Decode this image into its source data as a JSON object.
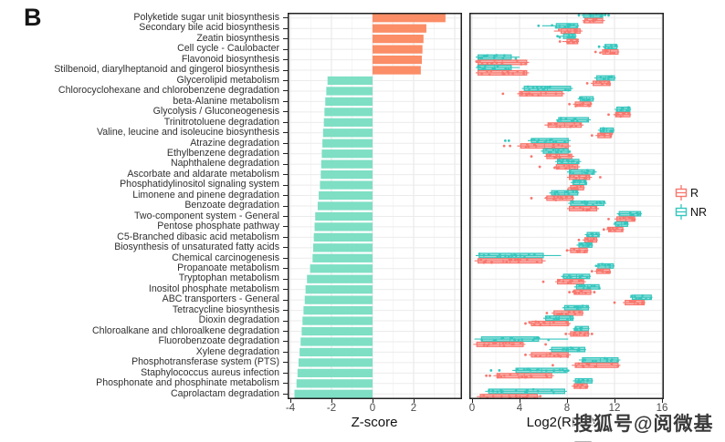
{
  "panel_label": "B",
  "watermark": "搜狐号@阅微基因",
  "colors": {
    "bar_positive": "#FB8D67",
    "bar_negative": "#7EDFC4",
    "box_r": "#F8766D",
    "box_nr": "#35C6BE",
    "grid_major": "#e4e4e4",
    "grid_minor": "#f3f3f3",
    "panel_border": "#222222"
  },
  "legend": {
    "items": [
      {
        "label": "R",
        "color": "#F8766D"
      },
      {
        "label": "NR",
        "color": "#35C6BE"
      }
    ]
  },
  "chart_data": [
    {
      "type": "bar",
      "orientation": "horizontal",
      "xlabel": "Z-score",
      "xlim": [
        -4.13,
        4.35
      ],
      "xticks": [
        -4,
        -2,
        0,
        2
      ],
      "grid": true,
      "bar_colors": {
        "positive": "#FB8D67",
        "negative": "#7EDFC4"
      },
      "categories": [
        "Polyketide sugar unit biosynthesis",
        "Secondary bile acid biosynthesis",
        "Zeatin biosynthesis",
        "Cell cycle - Caulobacter",
        "Flavonoid biosynthesis",
        "Stilbenoid, diarylheptanoid and gingerol biosynthesis",
        "Glycerolipid metabolism",
        "Chlorocyclohexane and chlorobenzene degradation",
        "beta-Alanine metabolism",
        "Glycolysis / Gluconeogenesis",
        "Trinitrotoluene degradation",
        "Valine, leucine and isoleucine biosynthesis",
        "Atrazine degradation",
        "Ethylbenzene degradation",
        "Naphthalene degradation",
        "Ascorbate and aldarate metabolism",
        "Phosphatidylinositol signaling system",
        "Limonene and pinene degradation",
        "Benzoate degradation",
        "Two-component system - General",
        "Pentose phosphate pathway",
        "C5-Branched dibasic acid metabolism",
        "Biosynthesis of unsaturated fatty acids",
        "Chemical carcinogenesis",
        "Propanoate metabolism",
        "Tryptophan metabolism",
        "Inositol phosphate metabolism",
        "ABC transporters - General",
        "Tetracycline biosynthesis",
        "Dioxin degradation",
        "Chloroalkane and chloroalkene degradation",
        "Fluorobenzoate degradation",
        "Xylene degradation",
        "Phosphotransferase system (PTS)",
        "Staphylococcus aureus infection",
        "Phosphonate and phosphinate metabolism",
        "Caprolactam degradation"
      ],
      "values": [
        3.55,
        2.62,
        2.48,
        2.43,
        2.4,
        2.35,
        -2.19,
        -2.25,
        -2.3,
        -2.34,
        -2.37,
        -2.41,
        -2.44,
        -2.47,
        -2.5,
        -2.52,
        -2.56,
        -2.62,
        -2.67,
        -2.79,
        -2.82,
        -2.86,
        -2.89,
        -2.92,
        -3.04,
        -3.19,
        -3.26,
        -3.3,
        -3.36,
        -3.41,
        -3.45,
        -3.5,
        -3.55,
        -3.6,
        -3.65,
        -3.7,
        -3.8
      ]
    },
    {
      "type": "boxplot",
      "orientation": "horizontal",
      "xlabel": "Log2(RPKM)",
      "xlim": [
        0,
        16.15
      ],
      "xticks": [
        0,
        4,
        8,
        12,
        16
      ],
      "grid": true,
      "note": "boxes = [whisker_low, q1, q3, whisker_high] per pathway, same category order as bar chart; NR drawn above R in each row",
      "series": [
        {
          "name": "NR",
          "color": "#35C6BE",
          "boxes": [
            [
              9.2,
              9.4,
              11.0,
              11.3
            ],
            [
              5.9,
              7.1,
              8.9,
              9.0
            ],
            [
              7.3,
              7.7,
              8.7,
              8.8
            ],
            [
              11.0,
              11.2,
              12.2,
              12.3
            ],
            [
              0.3,
              0.5,
              3.3,
              4.0
            ],
            [
              0.3,
              0.5,
              3.3,
              4.0
            ],
            [
              10.3,
              10.5,
              12.0,
              12.1
            ],
            [
              4.2,
              4.4,
              8.3,
              8.5
            ],
            [
              8.9,
              9.1,
              10.2,
              10.3
            ],
            [
              12.0,
              12.2,
              13.3,
              13.4
            ],
            [
              7.1,
              7.3,
              9.8,
              10.0
            ],
            [
              10.6,
              10.8,
              11.9,
              12.0
            ],
            [
              4.7,
              5.0,
              8.1,
              8.3
            ],
            [
              5.8,
              6.0,
              8.1,
              8.3
            ],
            [
              7.0,
              7.2,
              9.0,
              9.2
            ],
            [
              8.0,
              8.2,
              10.3,
              10.5
            ],
            [
              8.3,
              8.5,
              9.6,
              9.7
            ],
            [
              6.5,
              6.7,
              8.9,
              9.0
            ],
            [
              8.1,
              8.3,
              11.1,
              11.3
            ],
            [
              12.2,
              12.4,
              14.2,
              14.3
            ],
            [
              11.9,
              12.1,
              13.1,
              13.2
            ],
            [
              9.5,
              9.7,
              10.7,
              10.8
            ],
            [
              8.8,
              9.0,
              10.1,
              10.2
            ],
            [
              0.3,
              0.6,
              6.0,
              7.5
            ],
            [
              10.4,
              10.6,
              11.9,
              12.0
            ],
            [
              7.5,
              7.7,
              9.9,
              10.0
            ],
            [
              8.6,
              8.8,
              10.7,
              10.8
            ],
            [
              13.3,
              13.5,
              15.1,
              15.2
            ],
            [
              7.6,
              7.8,
              9.8,
              9.9
            ],
            [
              6.0,
              6.2,
              8.5,
              8.6
            ],
            [
              8.5,
              8.7,
              9.8,
              9.9
            ],
            [
              0.2,
              0.8,
              5.6,
              8.1
            ],
            [
              6.5,
              6.7,
              9.5,
              9.6
            ],
            [
              9.0,
              9.3,
              12.3,
              12.5
            ],
            [
              3.4,
              3.7,
              8.0,
              8.2
            ],
            [
              8.5,
              8.7,
              10.1,
              10.2
            ],
            [
              1.1,
              1.4,
              7.8,
              8.0
            ]
          ],
          "outliers": [
            [
              9.0,
              11.5
            ],
            [
              5.6
            ],
            [
              7.2
            ],
            [
              10.7
            ],
            [],
            [],
            [],
            [],
            [],
            [],
            [],
            [],
            [
              2.8,
              3.1
            ],
            [],
            [],
            [],
            [],
            [],
            [],
            [],
            [],
            [],
            [],
            [],
            [],
            [],
            [],
            [],
            [],
            [],
            [],
            [],
            [],
            [],
            [
              1.6,
              2.3
            ],
            [],
            []
          ]
        },
        {
          "name": "R",
          "color": "#F8766D",
          "boxes": [
            [
              9.3,
              9.5,
              11.0,
              11.2
            ],
            [
              6.9,
              7.5,
              9.1,
              9.3
            ],
            [
              7.6,
              8.0,
              8.9,
              9.0
            ],
            [
              10.8,
              11.0,
              12.3,
              12.4
            ],
            [
              0.3,
              0.5,
              4.6,
              4.8
            ],
            [
              0.3,
              0.5,
              4.6,
              4.8
            ],
            [
              10.0,
              10.2,
              11.6,
              11.7
            ],
            [
              3.8,
              4.0,
              7.6,
              7.8
            ],
            [
              8.5,
              8.7,
              10.0,
              10.1
            ],
            [
              11.9,
              12.1,
              13.3,
              13.4
            ],
            [
              6.1,
              6.4,
              9.2,
              9.4
            ],
            [
              10.4,
              10.6,
              11.7,
              11.8
            ],
            [
              3.8,
              4.1,
              8.1,
              8.3
            ],
            [
              6.1,
              6.3,
              8.4,
              8.6
            ],
            [
              6.9,
              7.1,
              8.9,
              9.1
            ],
            [
              8.0,
              8.2,
              9.9,
              10.1
            ],
            [
              8.1,
              8.3,
              9.4,
              9.5
            ],
            [
              6.1,
              6.3,
              8.5,
              8.6
            ],
            [
              8.0,
              8.2,
              10.5,
              10.7
            ],
            [
              12.0,
              12.2,
              13.7,
              13.8
            ],
            [
              11.3,
              11.5,
              12.7,
              12.8
            ],
            [
              9.3,
              9.5,
              10.5,
              10.6
            ],
            [
              8.1,
              8.3,
              9.7,
              9.8
            ],
            [
              0.2,
              0.5,
              5.9,
              6.2
            ],
            [
              10.3,
              10.5,
              11.6,
              11.7
            ],
            [
              7.0,
              7.2,
              9.4,
              9.6
            ],
            [
              8.4,
              8.6,
              10.0,
              10.1
            ],
            [
              12.7,
              12.9,
              14.5,
              14.6
            ],
            [
              6.7,
              6.9,
              9.3,
              9.4
            ],
            [
              4.8,
              5.0,
              8.1,
              8.3
            ],
            [
              8.1,
              8.3,
              9.8,
              9.9
            ],
            [
              0.1,
              0.4,
              4.3,
              4.5
            ],
            [
              4.8,
              5.0,
              8.1,
              8.3
            ],
            [
              8.4,
              8.7,
              12.3,
              12.5
            ],
            [
              1.8,
              2.1,
              6.7,
              6.9
            ],
            [
              8.4,
              8.6,
              9.7,
              9.8
            ],
            [
              0.4,
              0.7,
              5.5,
              5.8
            ]
          ],
          "outliers": [
            [],
            [],
            [
              7.4
            ],
            [
              10.4
            ],
            [],
            [],
            [
              9.7
            ],
            [
              2.6
            ],
            [
              8.2
            ],
            [
              11.5
            ],
            [],
            [
              10.1
            ],
            [
              2.7,
              3.2
            ],
            [
              5.0
            ],
            [
              5.7
            ],
            [
              10.8
            ],
            [],
            [
              5.0
            ],
            [],
            [
              11.5
            ],
            [
              11.1
            ],
            [
              9.0
            ],
            [
              8.0
            ],
            [],
            [
              10.1
            ],
            [
              6.0
            ],
            [
              8.2,
              10.3
            ],
            [
              12.0
            ],
            [
              6.3
            ],
            [
              4.5
            ],
            [
              7.9,
              10.1
            ],
            [
              6.2
            ],
            [
              4.5
            ],
            [
              6.8
            ],
            [
              1.2,
              1.5
            ],
            [],
            []
          ]
        }
      ]
    }
  ]
}
